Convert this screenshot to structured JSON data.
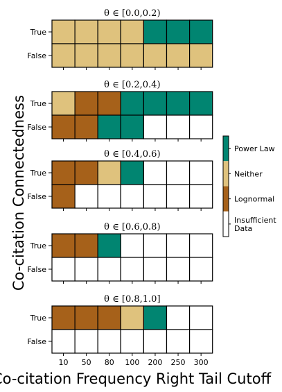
{
  "chart_data": {
    "type": "heatmap",
    "ylabel": "Co-citation Connectedness",
    "xlabel": "Co-citation Frequency Right Tail Cutoff",
    "x_categories": [
      "10",
      "50",
      "80",
      "100",
      "200",
      "250",
      "300"
    ],
    "row_labels": [
      "True",
      "False"
    ],
    "legend": {
      "entries": [
        "Power Law",
        "Neither",
        "Lognormal",
        "Insufficient Data"
      ],
      "colors": {
        "Power Law": "#018571",
        "Neither": "#dfc27d",
        "Lognormal": "#a6611a",
        "Insufficient Data": "#ffffff"
      }
    },
    "panels": [
      {
        "title": "θ ∈ [0.0,0.2)",
        "rows": {
          "True": [
            "Neither",
            "Neither",
            "Neither",
            "Neither",
            "Power Law",
            "Power Law",
            "Power Law"
          ],
          "False": [
            "Neither",
            "Neither",
            "Neither",
            "Neither",
            "Neither",
            "Neither",
            "Neither"
          ]
        }
      },
      {
        "title": "θ ∈ [0.2,0.4)",
        "rows": {
          "True": [
            "Neither",
            "Lognormal",
            "Lognormal",
            "Power Law",
            "Power Law",
            "Power Law",
            "Power Law"
          ],
          "False": [
            "Lognormal",
            "Lognormal",
            "Power Law",
            "Power Law",
            "Insufficient Data",
            "Insufficient Data",
            "Insufficient Data"
          ]
        }
      },
      {
        "title": "θ ∈ [0.4,0.6)",
        "rows": {
          "True": [
            "Lognormal",
            "Lognormal",
            "Neither",
            "Power Law",
            "Insufficient Data",
            "Insufficient Data",
            "Insufficient Data"
          ],
          "False": [
            "Lognormal",
            "Insufficient Data",
            "Insufficient Data",
            "Insufficient Data",
            "Insufficient Data",
            "Insufficient Data",
            "Insufficient Data"
          ]
        }
      },
      {
        "title": "θ ∈ [0.6,0.8)",
        "rows": {
          "True": [
            "Lognormal",
            "Lognormal",
            "Power Law",
            "Insufficient Data",
            "Insufficient Data",
            "Insufficient Data",
            "Insufficient Data"
          ],
          "False": [
            "Insufficient Data",
            "Insufficient Data",
            "Insufficient Data",
            "Insufficient Data",
            "Insufficient Data",
            "Insufficient Data",
            "Insufficient Data"
          ]
        }
      },
      {
        "title": "θ ∈ [0.8,1.0]",
        "rows": {
          "True": [
            "Lognormal",
            "Lognormal",
            "Lognormal",
            "Neither",
            "Power Law",
            "Insufficient Data",
            "Insufficient Data"
          ],
          "False": [
            "Insufficient Data",
            "Insufficient Data",
            "Insufficient Data",
            "Insufficient Data",
            "Insufficient Data",
            "Insufficient Data",
            "Insufficient Data"
          ]
        }
      }
    ]
  }
}
